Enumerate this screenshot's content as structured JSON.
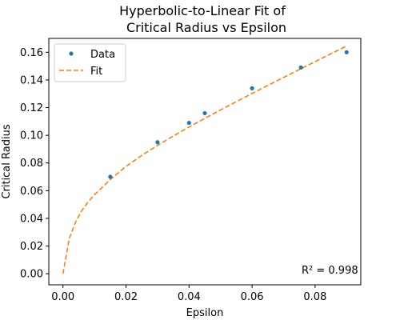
{
  "chart_data": {
    "type": "scatter",
    "title_line1": "Hyperbolic-to-Linear Fit of",
    "title_line2": "Critical Radius vs Epsilon",
    "xlabel": "Epsilon",
    "ylabel": "Critical Radius",
    "xlim": [
      -0.0045,
      0.0945
    ],
    "ylim": [
      -0.008,
      0.17
    ],
    "xticks": [
      0.0,
      0.02,
      0.04,
      0.06,
      0.08
    ],
    "xtick_labels": [
      "0.00",
      "0.02",
      "0.04",
      "0.06",
      "0.08"
    ],
    "yticks": [
      0.0,
      0.02,
      0.04,
      0.06,
      0.08,
      0.1,
      0.12,
      0.14,
      0.16
    ],
    "ytick_labels": [
      "0.00",
      "0.02",
      "0.04",
      "0.06",
      "0.08",
      "0.10",
      "0.12",
      "0.14",
      "0.16"
    ],
    "grid": false,
    "legend_position": "top-left",
    "series": [
      {
        "name": "Data",
        "kind": "points",
        "color": "#1f77b4",
        "x": [
          0.015,
          0.03,
          0.04,
          0.045,
          0.06,
          0.0755,
          0.09
        ],
        "y": [
          0.07,
          0.095,
          0.109,
          0.116,
          0.134,
          0.149,
          0.16
        ]
      },
      {
        "name": "Fit",
        "kind": "dashed-line",
        "color": "#ff7f0e",
        "x": [
          0.0,
          0.002,
          0.004,
          0.006,
          0.008,
          0.01,
          0.012,
          0.015,
          0.02,
          0.025,
          0.03,
          0.035,
          0.04,
          0.045,
          0.05,
          0.055,
          0.06,
          0.065,
          0.07,
          0.075,
          0.08,
          0.085,
          0.09
        ],
        "y": [
          0.0,
          0.0255,
          0.0374,
          0.0457,
          0.0519,
          0.0571,
          0.0614,
          0.068,
          0.0775,
          0.0855,
          0.0927,
          0.0995,
          0.106,
          0.1122,
          0.1183,
          0.1243,
          0.1302,
          0.136,
          0.1418,
          0.1475,
          0.1532,
          0.1589,
          0.1645
        ]
      }
    ],
    "annotation": "R² = 0.998"
  }
}
